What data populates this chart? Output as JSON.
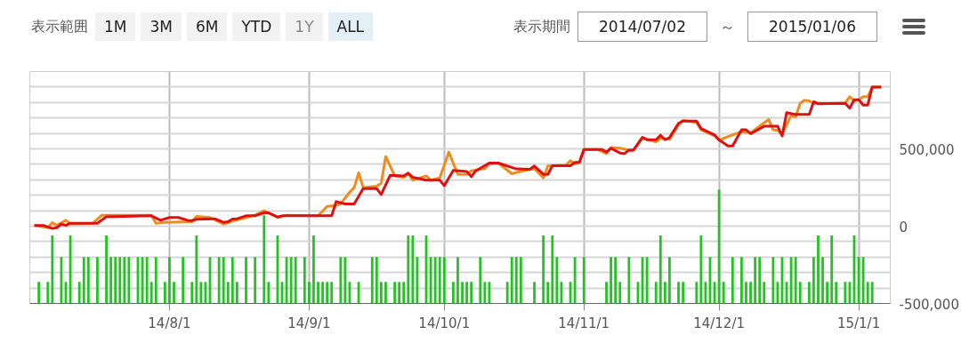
{
  "chart_data": {
    "type": "line",
    "annotations": [
      "表示範囲",
      "1M",
      "3M",
      "6M",
      "YTD",
      "1Y",
      "ALL",
      "表示期間",
      "2014/07/02",
      "～",
      "2015/01/06"
    ],
    "xlim": [
      "2014-07-01",
      "2015-01-08"
    ],
    "xticks": [
      {
        "value": "2014-08-01",
        "label": "14/8/1"
      },
      {
        "value": "2014-09-01",
        "label": "14/9/1"
      },
      {
        "value": "2014-10-01",
        "label": "14/10/1"
      },
      {
        "value": "2014-11-01",
        "label": "14/11/1"
      },
      {
        "value": "2014-12-01",
        "label": "14/12/1"
      },
      {
        "value": "2015-01-01",
        "label": "15/1/1"
      }
    ],
    "ylim": [
      -500000,
      1000000
    ],
    "yticks": [
      {
        "value": -500000,
        "label": "-500,000"
      },
      {
        "value": -400000,
        "label": null
      },
      {
        "value": -300000,
        "label": null
      },
      {
        "value": -200000,
        "label": null
      },
      {
        "value": -100000,
        "label": null
      },
      {
        "value": 0,
        "label": "0"
      },
      {
        "value": 100000,
        "label": null
      },
      {
        "value": 200000,
        "label": null
      },
      {
        "value": 300000,
        "label": null
      },
      {
        "value": 400000,
        "label": null
      },
      {
        "value": 500000,
        "label": "500,000"
      },
      {
        "value": 600000,
        "label": null
      },
      {
        "value": 700000,
        "label": null
      },
      {
        "value": 800000,
        "label": null
      },
      {
        "value": 900000,
        "label": null
      },
      {
        "value": 1000000,
        "label": null
      }
    ],
    "grid": true,
    "series": [
      {
        "type": "bar",
        "color": "#22c322",
        "x": [
          "2014-07-03",
          "2014-07-05",
          "2014-07-06",
          "2014-07-08",
          "2014-07-09",
          "2014-07-10",
          "2014-07-12",
          "2014-07-13",
          "2014-07-14",
          "2014-07-16",
          "2014-07-18",
          "2014-07-19",
          "2014-07-20",
          "2014-07-21",
          "2014-07-22",
          "2014-07-23",
          "2014-07-25",
          "2014-07-26",
          "2014-07-27",
          "2014-07-28",
          "2014-07-29",
          "2014-07-31",
          "2014-08-01",
          "2014-08-02",
          "2014-08-04",
          "2014-08-06",
          "2014-08-07",
          "2014-08-08",
          "2014-08-09",
          "2014-08-10",
          "2014-08-12",
          "2014-08-13",
          "2014-08-14",
          "2014-08-15",
          "2014-08-16",
          "2014-08-18",
          "2014-08-20",
          "2014-08-22",
          "2014-08-23",
          "2014-08-25",
          "2014-08-26",
          "2014-08-27",
          "2014-08-28",
          "2014-08-29",
          "2014-08-31",
          "2014-09-01",
          "2014-09-02",
          "2014-09-03",
          "2014-09-04",
          "2014-09-05",
          "2014-09-06",
          "2014-09-08",
          "2014-09-09",
          "2014-09-10",
          "2014-09-12",
          "2014-09-15",
          "2014-09-16",
          "2014-09-17",
          "2014-09-18",
          "2014-09-20",
          "2014-09-21",
          "2014-09-22",
          "2014-09-23",
          "2014-09-24",
          "2014-09-25",
          "2014-09-27",
          "2014-09-28",
          "2014-09-29",
          "2014-09-30",
          "2014-10-01",
          "2014-10-03",
          "2014-10-04",
          "2014-10-05",
          "2014-10-06",
          "2014-10-07",
          "2014-10-09",
          "2014-10-10",
          "2014-10-11",
          "2014-10-15",
          "2014-10-16",
          "2014-10-17",
          "2014-10-18",
          "2014-10-21",
          "2014-10-23",
          "2014-10-24",
          "2014-10-25",
          "2014-10-26",
          "2014-10-27",
          "2014-10-29",
          "2014-10-30",
          "2014-11-01",
          "2014-11-06",
          "2014-11-07",
          "2014-11-08",
          "2014-11-09",
          "2014-11-11",
          "2014-11-13",
          "2014-11-14",
          "2014-11-15",
          "2014-11-17",
          "2014-11-18",
          "2014-11-19",
          "2014-11-20",
          "2014-11-22",
          "2014-11-23",
          "2014-11-26",
          "2014-11-27",
          "2014-11-28",
          "2014-11-29",
          "2014-11-30",
          "2014-12-01",
          "2014-12-02",
          "2014-12-04",
          "2014-12-06",
          "2014-12-07",
          "2014-12-08",
          "2014-12-09",
          "2014-12-10",
          "2014-12-11",
          "2014-12-13",
          "2014-12-14",
          "2014-12-15",
          "2014-12-16",
          "2014-12-17",
          "2014-12-18",
          "2014-12-19",
          "2014-12-21",
          "2014-12-22",
          "2014-12-23",
          "2014-12-24",
          "2014-12-25",
          "2014-12-26",
          "2014-12-27",
          "2014-12-29",
          "2014-12-30",
          "2014-12-31",
          "2015-01-01",
          "2015-01-02",
          "2015-01-03",
          "2015-01-04"
        ],
        "base": [
          -500000,
          -500000,
          -500000,
          -500000,
          -500000,
          -500000,
          -500000,
          -500000,
          -500000,
          -500000,
          -500000,
          -500000,
          -500000,
          -500000,
          -500000,
          -500000,
          -500000,
          -500000,
          -500000,
          -500000,
          -500000,
          -500000,
          -500000,
          -500000,
          -500000,
          -500000,
          -500000,
          -500000,
          -500000,
          -500000,
          -500000,
          -500000,
          -500000,
          -500000,
          -500000,
          -500000,
          -500000,
          -500000,
          -500000,
          -500000,
          -500000,
          -500000,
          -500000,
          -500000,
          -500000,
          -500000,
          -500000,
          -500000,
          -500000,
          -500000,
          -500000,
          -500000,
          -500000,
          -500000,
          -500000,
          -500000,
          -500000,
          -500000,
          -500000,
          -500000,
          -500000,
          -500000,
          -500000,
          -500000,
          -500000,
          -500000,
          -500000,
          -500000,
          -500000,
          -500000,
          -500000,
          -500000,
          -500000,
          -500000,
          -500000,
          -500000,
          -500000,
          -500000,
          -500000,
          -500000,
          -500000,
          -500000,
          -500000,
          -500000,
          -500000,
          -500000,
          -500000,
          -500000,
          -500000,
          -500000,
          -500000,
          -500000,
          -500000,
          -500000,
          -500000,
          -500000,
          -500000,
          -500000,
          -500000,
          -500000,
          -500000,
          -500000,
          -500000,
          -500000,
          -500000,
          -500000,
          -500000,
          -500000,
          -500000,
          -500000,
          -500000,
          -500000,
          -500000,
          -500000,
          -500000,
          -500000,
          -500000,
          -500000,
          -500000,
          -500000,
          -500000,
          -500000,
          -500000,
          -500000,
          -500000,
          -500000,
          -500000,
          -500000,
          -500000,
          -500000,
          -500000,
          -500000,
          -500000,
          -500000,
          -500000,
          -500000,
          -500000,
          -500000,
          -500000,
          -500000
        ],
        "values": [
          140000,
          140000,
          440000,
          300000,
          140000,
          440000,
          140000,
          300000,
          300000,
          300000,
          440000,
          300000,
          300000,
          300000,
          300000,
          300000,
          300000,
          300000,
          300000,
          140000,
          300000,
          140000,
          300000,
          140000,
          300000,
          140000,
          440000,
          140000,
          140000,
          300000,
          300000,
          300000,
          140000,
          300000,
          140000,
          300000,
          300000,
          570000,
          140000,
          440000,
          140000,
          300000,
          300000,
          300000,
          300000,
          140000,
          440000,
          140000,
          140000,
          140000,
          140000,
          300000,
          300000,
          140000,
          140000,
          300000,
          300000,
          140000,
          140000,
          140000,
          140000,
          140000,
          440000,
          440000,
          300000,
          440000,
          300000,
          300000,
          300000,
          300000,
          140000,
          300000,
          140000,
          140000,
          140000,
          300000,
          140000,
          140000,
          140000,
          300000,
          300000,
          300000,
          140000,
          440000,
          140000,
          440000,
          300000,
          140000,
          140000,
          300000,
          300000,
          140000,
          300000,
          300000,
          140000,
          300000,
          140000,
          300000,
          300000,
          140000,
          440000,
          140000,
          300000,
          140000,
          140000,
          140000,
          440000,
          140000,
          300000,
          140000,
          735000,
          140000,
          300000,
          300000,
          140000,
          140000,
          300000,
          300000,
          140000,
          300000,
          140000,
          300000,
          140000,
          300000,
          300000,
          140000,
          140000,
          300000,
          440000,
          300000,
          140000,
          440000,
          140000,
          140000,
          140000,
          440000,
          300000,
          300000,
          140000,
          140000
        ]
      },
      {
        "color": "#f08c1e",
        "x": [
          "2014-07-02",
          "2014-07-05",
          "2014-07-06",
          "2014-07-07",
          "2014-07-09",
          "2014-07-10",
          "2014-07-15",
          "2014-07-17",
          "2014-07-28",
          "2014-07-29",
          "2014-07-31",
          "2014-08-06",
          "2014-08-07",
          "2014-08-10",
          "2014-08-13",
          "2014-08-15",
          "2014-08-18",
          "2014-08-20",
          "2014-08-22",
          "2014-08-23",
          "2014-08-25",
          "2014-08-27",
          "2014-09-03",
          "2014-09-05",
          "2014-09-07",
          "2014-09-08",
          "2014-09-10",
          "2014-09-11",
          "2014-09-12",
          "2014-09-13",
          "2014-09-16",
          "2014-09-17",
          "2014-09-18",
          "2014-09-20",
          "2014-09-22",
          "2014-09-23",
          "2014-09-24",
          "2014-09-27",
          "2014-09-28",
          "2014-09-30",
          "2014-10-02",
          "2014-10-04",
          "2014-10-06",
          "2014-10-07",
          "2014-10-10",
          "2014-10-11",
          "2014-10-13",
          "2014-10-16",
          "2014-10-18",
          "2014-10-21",
          "2014-10-23",
          "2014-10-24",
          "2014-10-28",
          "2014-10-29",
          "2014-10-30",
          "2014-10-31",
          "2014-11-01",
          "2014-11-04",
          "2014-11-06",
          "2014-11-07",
          "2014-11-09",
          "2014-11-11",
          "2014-11-12",
          "2014-11-14",
          "2014-11-17",
          "2014-11-18",
          "2014-11-20",
          "2014-11-22",
          "2014-11-23",
          "2014-11-26",
          "2014-11-27",
          "2014-11-30",
          "2014-12-01",
          "2014-12-03",
          "2014-12-04",
          "2014-12-06",
          "2014-12-08",
          "2014-12-12",
          "2014-12-13",
          "2014-12-14",
          "2014-12-15",
          "2014-12-17",
          "2014-12-18",
          "2014-12-19",
          "2014-12-20",
          "2014-12-21",
          "2014-12-22",
          "2014-12-29",
          "2014-12-30",
          "2014-12-31",
          "2015-01-01",
          "2015-01-02",
          "2015-01-03",
          "2015-01-04",
          "2015-01-06"
        ],
        "values": [
          5000,
          -10000,
          23000,
          5000,
          38000,
          15000,
          19000,
          71000,
          71000,
          19000,
          25000,
          29000,
          63000,
          56000,
          13000,
          33000,
          56000,
          71000,
          100000,
          86000,
          56000,
          71000,
          67000,
          128000,
          134000,
          144000,
          220000,
          249000,
          345000,
          249000,
          259000,
          278000,
          450000,
          325000,
          316000,
          339000,
          297000,
          325000,
          297000,
          312000,
          479000,
          335000,
          335000,
          358000,
          372000,
          402000,
          408000,
          339000,
          354000,
          372000,
          312000,
          389000,
          393000,
          424000,
          402000,
          416000,
          496000,
          496000,
          469000,
          508000,
          504000,
          492000,
          492000,
          569000,
          546000,
          569000,
          561000,
          655000,
          684000,
          671000,
          623000,
          584000,
          556000,
          580000,
          590000,
          611000,
          604000,
          690000,
          623000,
          619000,
          594000,
          718000,
          707000,
          795000,
          814000,
          810000,
          795000,
          795000,
          837000,
          810000,
          818000,
          837000,
          837000,
          900000,
          900000
        ]
      },
      {
        "color": "#dd1111",
        "x": [
          "2014-07-02",
          "2014-07-04",
          "2014-07-06",
          "2014-07-07",
          "2014-07-08",
          "2014-07-09",
          "2014-07-10",
          "2014-07-16",
          "2014-07-18",
          "2014-07-28",
          "2014-07-30",
          "2014-08-01",
          "2014-08-03",
          "2014-08-05",
          "2014-08-06",
          "2014-08-07",
          "2014-08-11",
          "2014-08-13",
          "2014-08-14",
          "2014-08-15",
          "2014-08-16",
          "2014-08-18",
          "2014-08-20",
          "2014-08-22",
          "2014-08-23",
          "2014-08-25",
          "2014-08-26",
          "2014-08-31",
          "2014-09-06",
          "2014-09-07",
          "2014-09-09",
          "2014-09-11",
          "2014-09-13",
          "2014-09-16",
          "2014-09-17",
          "2014-09-19",
          "2014-09-22",
          "2014-09-23",
          "2014-09-24",
          "2014-09-27",
          "2014-09-30",
          "2014-10-01",
          "2014-10-03",
          "2014-10-06",
          "2014-10-07",
          "2014-10-08",
          "2014-10-11",
          "2014-10-13",
          "2014-10-17",
          "2014-10-20",
          "2014-10-21",
          "2014-10-23",
          "2014-10-24",
          "2014-10-25",
          "2014-10-29",
          "2014-10-30",
          "2014-10-31",
          "2014-11-01",
          "2014-11-05",
          "2014-11-06",
          "2014-11-07",
          "2014-11-09",
          "2014-11-10",
          "2014-11-11",
          "2014-11-12",
          "2014-11-14",
          "2014-11-15",
          "2014-11-17",
          "2014-11-18",
          "2014-11-19",
          "2014-11-20",
          "2014-11-22",
          "2014-11-23",
          "2014-11-26",
          "2014-11-27",
          "2014-11-30",
          "2014-12-01",
          "2014-12-03",
          "2014-12-04",
          "2014-12-06",
          "2014-12-07",
          "2014-12-08",
          "2014-12-11",
          "2014-12-14",
          "2014-12-15",
          "2014-12-16",
          "2014-12-18",
          "2014-12-21",
          "2014-12-22",
          "2014-12-23",
          "2014-12-29",
          "2014-12-30",
          "2014-12-31",
          "2015-01-01",
          "2015-01-02",
          "2015-01-03",
          "2015-01-04",
          "2015-01-06"
        ],
        "values": [
          5000,
          5000,
          -15000,
          -10000,
          13000,
          5000,
          19000,
          19000,
          61000,
          67000,
          38000,
          56000,
          56000,
          38000,
          36000,
          44000,
          48000,
          25000,
          29000,
          46000,
          48000,
          67000,
          67000,
          86000,
          86000,
          59000,
          67000,
          67000,
          67000,
          159000,
          144000,
          144000,
          243000,
          243000,
          205000,
          329000,
          325000,
          343000,
          316000,
          297000,
          297000,
          262000,
          360000,
          354000,
          320000,
          358000,
          408000,
          408000,
          370000,
          368000,
          389000,
          335000,
          335000,
          391000,
          391000,
          412000,
          412000,
          496000,
          496000,
          479000,
          504000,
          473000,
          469000,
          492000,
          492000,
          575000,
          559000,
          559000,
          588000,
          559000,
          573000,
          665000,
          680000,
          680000,
          632000,
          590000,
          557000,
          519000,
          519000,
          623000,
          623000,
          598000,
          646000,
          646000,
          584000,
          734000,
          722000,
          722000,
          805000,
          791000,
          795000,
          763000,
          818000,
          818000,
          783000,
          783000,
          900000,
          900000
        ]
      }
    ]
  }
}
